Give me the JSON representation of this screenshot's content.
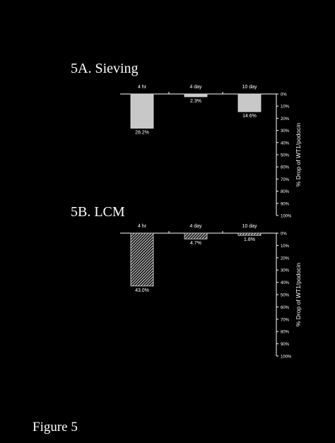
{
  "figure_label": "Figure 5",
  "chart_data": [
    {
      "type": "bar",
      "title": "5A.  Sieving",
      "categories": [
        "4 hr",
        "4 day",
        "10 day"
      ],
      "values": [
        28.2,
        2.3,
        14.6
      ],
      "value_labels": [
        "28.2%",
        "2.3%",
        "14.6%"
      ],
      "ylabel": "% Drop of WT1/podocin",
      "ylim": [
        0,
        100
      ],
      "ytick_labels": [
        "0%",
        "10%",
        "20%",
        "30%",
        "40%",
        "50%",
        "60%",
        "70%",
        "80%",
        "90%",
        "100%"
      ],
      "y_axis_inverted": true,
      "y_axis_position": "right",
      "bar_fill": "light-gray",
      "grid": false
    },
    {
      "type": "bar",
      "title": "5B.  LCM",
      "categories": [
        "4 hr",
        "4 day",
        "10 day"
      ],
      "values": [
        43.0,
        4.7,
        1.8
      ],
      "value_labels": [
        "43.0%",
        "4.7%",
        "1.8%"
      ],
      "ylabel": "% Drop of WT1/podocin",
      "ylim": [
        0,
        100
      ],
      "ytick_labels": [
        "0%",
        "10%",
        "20%",
        "30%",
        "40%",
        "50%",
        "60%",
        "70%",
        "80%",
        "90%",
        "100%"
      ],
      "y_axis_inverted": true,
      "y_axis_position": "right",
      "bar_fill": "diagonal-hatch",
      "grid": false
    }
  ]
}
